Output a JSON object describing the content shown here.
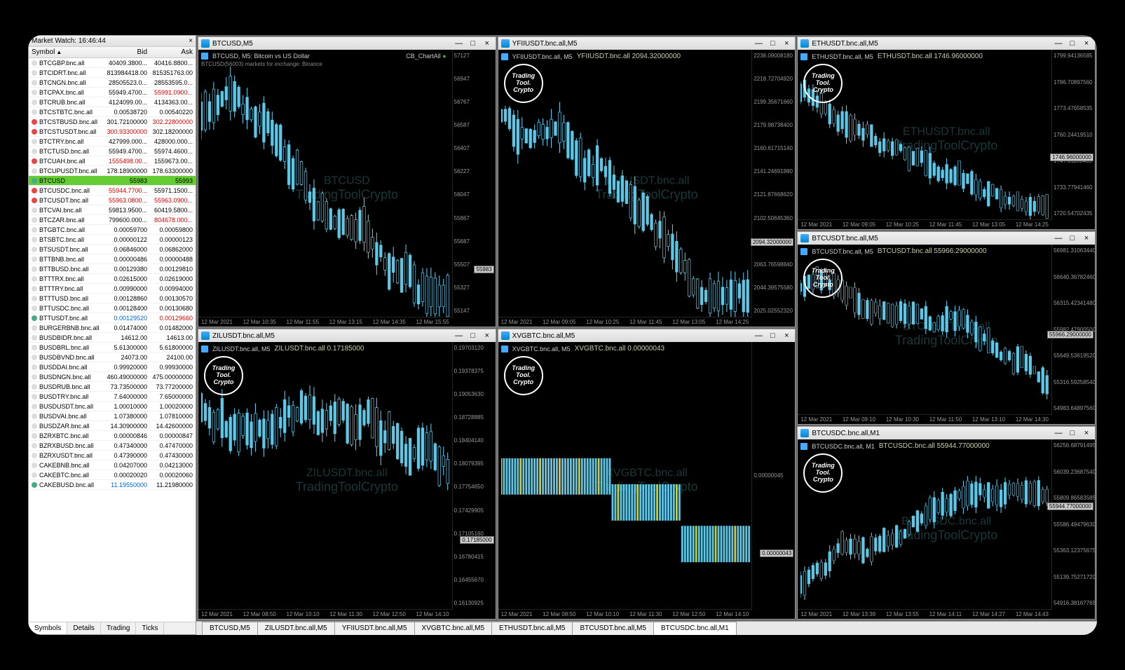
{
  "market_watch": {
    "title": "Market Watch: 16:46:44",
    "headers": {
      "symbol": "Symbol",
      "bid": "Bid",
      "ask": "Ask"
    },
    "rows": [
      {
        "sym": "BTCGBP.bnc.all",
        "bid": "40409.3800...",
        "ask": "40416.8800..."
      },
      {
        "sym": "BTCIDRT.bnc.all",
        "bid": "813984418.00",
        "ask": "815351763.00"
      },
      {
        "sym": "BTCNGN.bnc.all",
        "bid": "28505523.0...",
        "ask": "28553595.0..."
      },
      {
        "sym": "BTCPAX.bnc.all",
        "bid": "55949.4700...",
        "ask": "55991.0900...",
        "askcls": "red"
      },
      {
        "sym": "BTCRUB.bnc.all",
        "bid": "4124099.00...",
        "ask": "4134363.00..."
      },
      {
        "sym": "BTCSTBTC.bnc.all",
        "bid": "0.00538720",
        "ask": "0.00540220"
      },
      {
        "sym": "BTCSTBUSD.bnc.all",
        "bid": "301.72100000",
        "ask": "302.22800000",
        "askcls": "red",
        "icon": "down"
      },
      {
        "sym": "BTCSTUSDT.bnc.all",
        "bid": "300.93300000",
        "ask": "302.18200000",
        "bidcls": "red",
        "icon": "down"
      },
      {
        "sym": "BTCTRY.bnc.all",
        "bid": "427999.000...",
        "ask": "428000.000..."
      },
      {
        "sym": "BTCTUSD.bnc.all",
        "bid": "55949.4700...",
        "ask": "55974.4600..."
      },
      {
        "sym": "BTCUAH.bnc.all",
        "bid": "1555498.00...",
        "ask": "1559673.00...",
        "bidcls": "red",
        "icon": "down"
      },
      {
        "sym": "BTCUPUSDT.bnc.all",
        "bid": "178.18900000",
        "ask": "178.63300000"
      },
      {
        "sym": "BTCUSD",
        "bid": "55983",
        "ask": "55993",
        "hl": true,
        "icon": "up"
      },
      {
        "sym": "BTCUSDC.bnc.all",
        "bid": "55944.7700...",
        "ask": "55971.1500...",
        "bidcls": "red",
        "icon": "down"
      },
      {
        "sym": "BTCUSDT.bnc.all",
        "bid": "55963.0800...",
        "ask": "55963.0900...",
        "bidcls": "red",
        "askcls": "red",
        "icon": "down"
      },
      {
        "sym": "BTCVAI.bnc.all",
        "bid": "59813.9500...",
        "ask": "60419.5800..."
      },
      {
        "sym": "BTCZAR.bnc.all",
        "bid": "799600.000...",
        "ask": "804678.000...",
        "askcls": "red"
      },
      {
        "sym": "BTGBTC.bnc.all",
        "bid": "0.00059700",
        "ask": "0.00059800"
      },
      {
        "sym": "BTSBTC.bnc.all",
        "bid": "0.00000122",
        "ask": "0.00000123"
      },
      {
        "sym": "BTSUSDT.bnc.all",
        "bid": "0.06846000",
        "ask": "0.06862000"
      },
      {
        "sym": "BTTBNB.bnc.all",
        "bid": "0.00000486",
        "ask": "0.00000488"
      },
      {
        "sym": "BTTBUSD.bnc.all",
        "bid": "0.00129380",
        "ask": "0.00129810"
      },
      {
        "sym": "BTTTRX.bnc.all",
        "bid": "0.02615000",
        "ask": "0.02619000"
      },
      {
        "sym": "BTTTRY.bnc.all",
        "bid": "0.00990000",
        "ask": "0.00994000"
      },
      {
        "sym": "BTTTUSD.bnc.all",
        "bid": "0.00128860",
        "ask": "0.00130570"
      },
      {
        "sym": "BTTUSDC.bnc.all",
        "bid": "0.00128400",
        "ask": "0.00130680"
      },
      {
        "sym": "BTTUSDT.bnc.all",
        "bid": "0.00129520",
        "ask": "0.00129660",
        "bidcls": "blue",
        "askcls": "red",
        "icon": "up"
      },
      {
        "sym": "BURGERBNB.bnc.all",
        "bid": "0.01474000",
        "ask": "0.01482000"
      },
      {
        "sym": "BUSDBIDR.bnc.all",
        "bid": "14612.00",
        "ask": "14613.00"
      },
      {
        "sym": "BUSDBRL.bnc.all",
        "bid": "5.61300000",
        "ask": "5.61800000"
      },
      {
        "sym": "BUSDBVND.bnc.all",
        "bid": "24073.00",
        "ask": "24100.00"
      },
      {
        "sym": "BUSDDAI.bnc.all",
        "bid": "0.99920000",
        "ask": "0.99930000"
      },
      {
        "sym": "BUSDNGN.bnc.all",
        "bid": "460.49000000",
        "ask": "475.00000000"
      },
      {
        "sym": "BUSDRUB.bnc.all",
        "bid": "73.73500000",
        "ask": "73.77200000"
      },
      {
        "sym": "BUSDTRY.bnc.all",
        "bid": "7.64000000",
        "ask": "7.65000000"
      },
      {
        "sym": "BUSDUSDT.bnc.all",
        "bid": "1.00010000",
        "ask": "1.00020000"
      },
      {
        "sym": "BUSDVAI.bnc.all",
        "bid": "1.07380000",
        "ask": "1.07810000"
      },
      {
        "sym": "BUSDZAR.bnc.all",
        "bid": "14.30900000",
        "ask": "14.42600000"
      },
      {
        "sym": "BZRXBTC.bnc.all",
        "bid": "0.00000846",
        "ask": "0.00000847"
      },
      {
        "sym": "BZRXBUSD.bnc.all",
        "bid": "0.47340000",
        "ask": "0.47470000"
      },
      {
        "sym": "BZRXUSDT.bnc.all",
        "bid": "0.47390000",
        "ask": "0.47430000"
      },
      {
        "sym": "CAKEBNB.bnc.all",
        "bid": "0.04207000",
        "ask": "0.04213000"
      },
      {
        "sym": "CAKEBTC.bnc.all",
        "bid": "0.00020020",
        "ask": "0.00020060"
      },
      {
        "sym": "CAKEBUSD.bnc.all",
        "bid": "11.19550000",
        "ask": "11.21980000",
        "bidcls": "blue",
        "icon": "up"
      }
    ],
    "tabs": [
      "Symbols",
      "Details",
      "Trading",
      "Ticks"
    ],
    "active_tab": 0
  },
  "charts": [
    {
      "title": "BTCUSD,M5",
      "info_left": "BTCUSD, M5:  Bitcoin vs US Dollar",
      "info_extra": "CB_ChartAll",
      "sub_info": "BTCUSD(56003) markets for exchange: Binance",
      "watermark_sym": "BTCUSD",
      "watermark_txt": "TradingToolCrypto",
      "y_ticks": [
        "57127",
        "56947",
        "56767",
        "56587",
        "56407",
        "56227",
        "56047",
        "55867",
        "55687",
        "55507",
        "55327",
        "55147"
      ],
      "x_ticks": [
        "12 Mar 2021",
        "12 Mar 10:35",
        "12 Mar 11:55",
        "12 Mar 13:15",
        "12 Mar 14:35",
        "12 Mar 15:55"
      ],
      "price_tag": "55983",
      "price_tag_pct": 78,
      "show_logo": false,
      "trend": "down"
    },
    {
      "title": "YFIIUSDT.bnc.all,M5",
      "info_left": "YFIIUSDT.bnc.all, M5",
      "chart_label": "YFIIUSDT.bnc.all 2094.32000000",
      "watermark_sym": "YFIIUSDT.bnc.all",
      "watermark_txt": "TradingToolCrypto",
      "y_ticks": [
        "2238.09008180",
        "2218.72704920",
        "2199.35671660",
        "2179.98738400",
        "2160.61715140",
        "2141.24691880",
        "2121.87668620",
        "2102.50645360",
        "2083.13622100",
        "2063.76598840",
        "2044.39575580",
        "2025.02552320"
      ],
      "x_ticks": [
        "12 Mar 2021",
        "12 Mar 09:05",
        "12 Mar 10:25",
        "12 Mar 11:45",
        "12 Mar 13:05",
        "12 Mar 14:25"
      ],
      "price_tag": "2094.32000000",
      "price_tag_pct": 68,
      "show_logo": true,
      "trend": "down"
    },
    {
      "title": "ZILUSDT.bnc.all,M5",
      "info_left": "ZILUSDT.bnc.all, M5",
      "chart_label": "ZILUSDT.bnc.all 0.17185000",
      "watermark_sym": "ZILUSDT.bnc.all",
      "watermark_txt": "TradingToolCrypto",
      "y_ticks": [
        "0.19703120",
        "0.19378375",
        "0.19053630",
        "0.18728885",
        "0.18404140",
        "0.18079395",
        "0.17754650",
        "0.17429905",
        "0.17105160",
        "0.16780415",
        "0.16455670",
        "0.16130925"
      ],
      "x_ticks": [
        "12 Mar 2021",
        "12 Mar 08:50",
        "12 Mar 10:10",
        "12 Mar 11:30",
        "12 Mar 12:50",
        "12 Mar 14:10"
      ],
      "price_tag": "0.17185000",
      "price_tag_pct": 70,
      "show_logo": true,
      "trend": "down"
    },
    {
      "title": "XVGBTC.bnc.all,M5",
      "info_left": "XVGBTC.bnc.all, M5",
      "chart_label": "XVGBTC.bnc.all 0.00000043",
      "watermark_sym": "XVGBTC.bnc.all",
      "watermark_txt": "TradingToolCrypto",
      "y_ticks": [
        "",
        "",
        "",
        "",
        "0.00000045",
        "",
        "",
        "",
        ""
      ],
      "x_ticks": [
        "12 Mar 2021",
        "12 Mar 08:50",
        "12 Mar 10:10",
        "12 Mar 11:30",
        "12 Mar 12:50",
        "12 Mar 14:10"
      ],
      "price_tag": "0.00000043",
      "price_tag_pct": 75,
      "show_logo": true,
      "trend": "flat"
    },
    {
      "title": "ETHUSDT.bnc.all,M5",
      "info_left": "ETHUSDT.bnc.all, M5",
      "chart_label": "ETHUSDT.bnc.all 1746.96000000",
      "watermark_sym": "ETHUSDT.bnc.all",
      "watermark_txt": "TradingToolCrypto",
      "y_ticks": [
        "1799.94136585",
        "1786.70897560",
        "1773.47658535",
        "1760.24419510",
        "1747.01180485",
        "1733.77941460",
        "1720.54702435"
      ],
      "x_ticks": [
        "12 Mar 2021",
        "12 Mar 09:05",
        "12 Mar 10:25",
        "12 Mar 11:45",
        "12 Mar 13:05",
        "12 Mar 14:25"
      ],
      "price_tag": "1746.96000000",
      "price_tag_pct": 58,
      "show_logo": true,
      "trend": "down"
    },
    {
      "title": "BTCUSDT.bnc.all,M5",
      "info_left": "BTCUSDT.bnc.all, M5",
      "chart_label": "BTCUSDT.bnc.all 55966.29000000",
      "watermark_sym": "BTCUSDT.bnc.all",
      "watermark_txt": "TradingToolCrypto",
      "y_ticks": [
        "56981.31063440",
        "56640.36782460",
        "56315.42341480",
        "55982.47900500",
        "55649.53619520",
        "55316.59258540",
        "54983.64897560"
      ],
      "x_ticks": [
        "12 Mar 2021",
        "12 Mar 09:10",
        "12 Mar 10:30",
        "12 Mar 11:50",
        "12 Mar 13:10",
        "12 Mar 14:30"
      ],
      "price_tag": "55966.29000000",
      "price_tag_pct": 48,
      "show_logo": true,
      "trend": "down"
    },
    {
      "title": "BTCUSDC.bnc.all,M1",
      "info_left": "BTCUSDC.bnc.all, M1",
      "chart_label": "BTCUSDC.bnc.all 55944.77000000",
      "watermark_sym": "BTCUSDC.bnc.all",
      "watermark_txt": "TradingToolCrypto",
      "y_ticks": [
        "56256.68791495",
        "56039.23687540",
        "55809.86583585",
        "55586.49479630",
        "55363.12375675",
        "55139.75271720",
        "54916.38167765"
      ],
      "x_ticks": [
        "12 Mar 2021",
        "12 Mar 13:39",
        "12 Mar 13:55",
        "12 Mar 14:11",
        "12 Mar 14:27",
        "12 Mar 14:43"
      ],
      "price_tag": "55944.77000000",
      "price_tag_pct": 35,
      "show_logo": true,
      "trend": "up"
    }
  ],
  "logo_text": "Trading Tool. Crypto",
  "chart_tabs": [
    "BTCUSD,M5",
    "ZILUSDT.bnc.all,M5",
    "YFIIUSDT.bnc.all,M5",
    "XVGBTC.bnc.all,M5",
    "ETHUSDT.bnc.all,M5",
    "BTCUSDT.bnc.all,M5",
    "BTCUSDC.bnc.all,M1"
  ],
  "active_chart_tab": 6,
  "colors": {
    "candle_up": "#5bc8e8",
    "candle_down": "#000000",
    "candle_border": "#5bc8e8",
    "bg": "#000000",
    "text_muted": "#999999"
  }
}
